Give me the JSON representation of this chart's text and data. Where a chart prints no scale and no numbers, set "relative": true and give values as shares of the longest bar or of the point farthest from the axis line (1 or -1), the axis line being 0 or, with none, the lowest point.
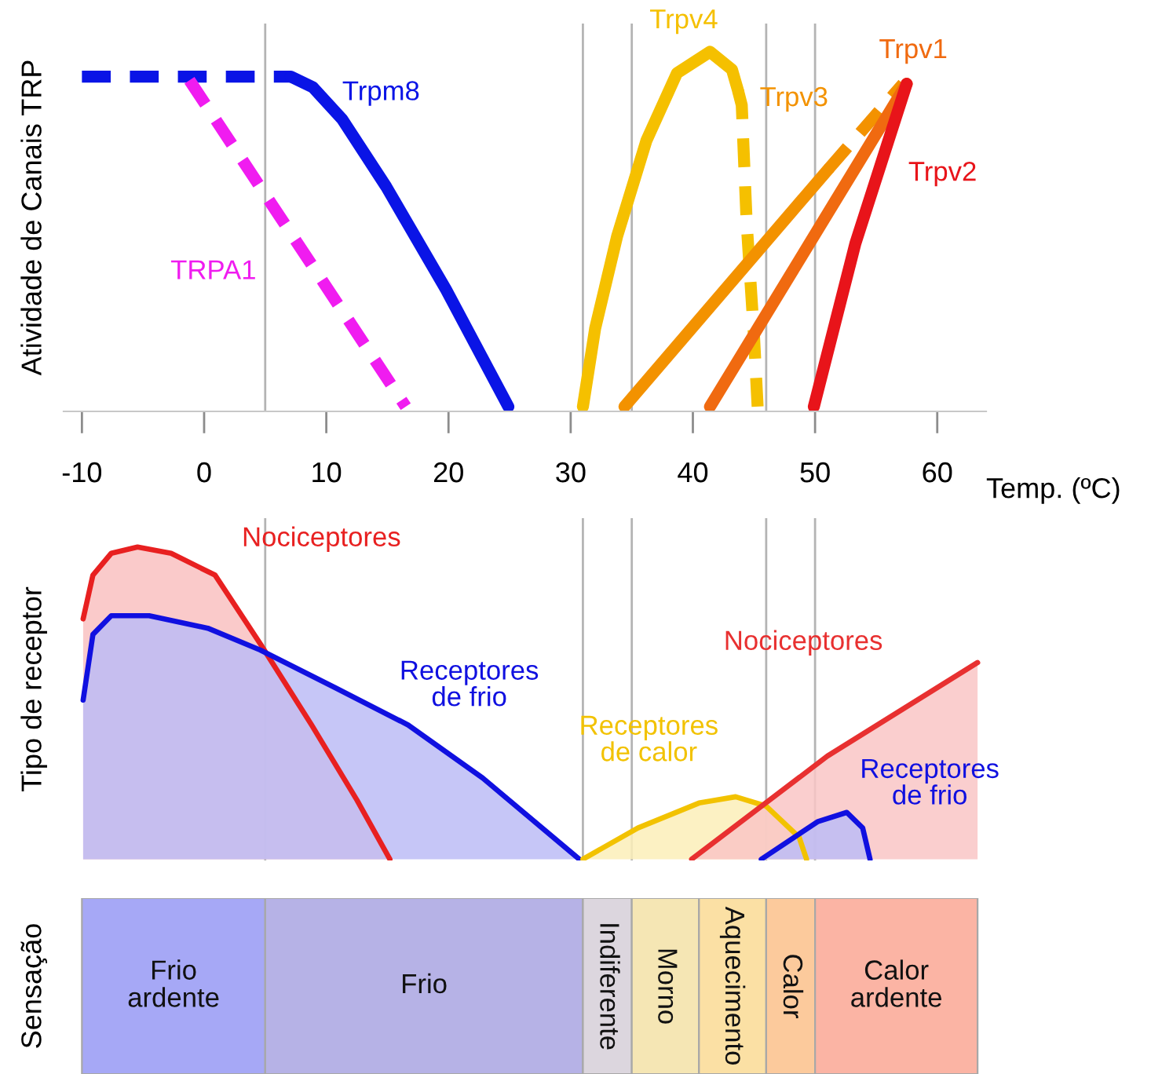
{
  "chart_data": [
    {
      "type": "line",
      "ylabel": "Atividade de Canais TRP",
      "xlabel": "Temp. (ºC)",
      "relative": true,
      "tick_labels": "x",
      "xlim": [
        -11.5,
        64
      ],
      "xticks": [
        -10,
        0,
        10,
        20,
        30,
        40,
        50,
        60
      ],
      "grid": false,
      "ref_lines": [
        {
          "axis": "x",
          "value": 5,
          "color": "#b4b4b4"
        },
        {
          "axis": "x",
          "value": 31,
          "color": "#b4b4b4"
        },
        {
          "axis": "x",
          "value": 35,
          "color": "#b4b4b4"
        },
        {
          "axis": "x",
          "value": 46,
          "color": "#b4b4b4"
        },
        {
          "axis": "x",
          "value": 50,
          "color": "#b4b4b4"
        }
      ],
      "series": [
        {
          "color": "#0a14e6",
          "line_style": "dashed",
          "x": [
            -10,
            7.1
          ],
          "values": [
            0.93,
            0.93
          ]
        },
        {
          "name": "Trpm8",
          "color": "#0a14e6",
          "line_style": "solid",
          "x": [
            7.1,
            8.9,
            11.3,
            14.9,
            19.8,
            24.9
          ],
          "values": [
            0.93,
            0.9,
            0.81,
            0.62,
            0.33,
            0
          ]
        },
        {
          "name": "TRPA1",
          "color": "#f01cf0",
          "line_style": "dashed",
          "x": [
            -1.2,
            16.5
          ],
          "values": [
            0.92,
            0
          ]
        },
        {
          "name": "Trpv4",
          "color": "#f5c000",
          "line_style": "solid",
          "x": [
            31,
            32,
            33.8,
            36.2,
            38.7,
            41.4,
            43.2,
            43.7
          ],
          "values": [
            0,
            0.22,
            0.48,
            0.75,
            0.94,
            1.0,
            0.95,
            0.89
          ]
        },
        {
          "color": "#f5c000",
          "line_style": "dashed",
          "x": [
            43.7,
            44.0,
            44.4,
            45.0,
            45.3
          ],
          "values": [
            0.89,
            0.85,
            0.52,
            0.2,
            0
          ]
        },
        {
          "name": "Trpv3",
          "color": "#f39200",
          "line_style": "solid",
          "x": [
            34.4,
            51.1
          ],
          "values": [
            0,
            0.67
          ]
        },
        {
          "color": "#f39200",
          "line_style": "dashed",
          "x": [
            51.1,
            57.2
          ],
          "values": [
            0.67,
            0.91
          ]
        },
        {
          "name": "Trpv1",
          "color": "#f06a10",
          "line_style": "solid",
          "x": [
            41.4,
            57.5
          ],
          "values": [
            0,
            0.91
          ]
        },
        {
          "name": "Trpv2",
          "color": "#e8141a",
          "line_style": "solid",
          "x": [
            49.9,
            53.3,
            57.5
          ],
          "values": [
            0,
            0.46,
            0.91
          ]
        }
      ]
    },
    {
      "type": "area",
      "ylabel": "Tipo de receptor",
      "relative": true,
      "tick_labels": false,
      "xticks": [
        -10,
        0,
        10,
        20,
        30,
        40,
        50,
        60
      ],
      "grid": false,
      "ref_lines": [
        {
          "axis": "x",
          "value": 5,
          "color": "#b4b4b4"
        },
        {
          "axis": "x",
          "value": 31,
          "color": "#b4b4b4"
        },
        {
          "axis": "x",
          "value": 35,
          "color": "#b4b4b4"
        },
        {
          "axis": "x",
          "value": 46,
          "color": "#b4b4b4"
        },
        {
          "axis": "x",
          "value": 50,
          "color": "#b4b4b4"
        }
      ],
      "series": [
        {
          "name": "Nociceptores",
          "color": "#e82020",
          "x": [
            -9.9,
            -9.1,
            -7.6,
            -5.45,
            -2.7,
            0.9,
            4.6,
            8.8,
            12.5,
            15.2
          ],
          "values": [
            0.77,
            0.91,
            0.98,
            1.0,
            0.98,
            0.91,
            0.69,
            0.43,
            0.19,
            0
          ]
        },
        {
          "name": "Receptores\nde frio",
          "color": "#1010e0",
          "x": [
            -9.9,
            -9.1,
            -7.6,
            -4.5,
            0.3,
            4.6,
            10.7,
            16.7,
            22.8,
            30.7
          ],
          "values": [
            0.51,
            0.72,
            0.78,
            0.78,
            0.74,
            0.67,
            0.55,
            0.43,
            0.26,
            0
          ]
        },
        {
          "name": "Receptores\nde calor",
          "color": "#f2c200",
          "x": [
            31,
            35.5,
            40.5,
            43.5,
            46,
            48.7,
            49.3
          ],
          "values": [
            0,
            0.1,
            0.18,
            0.2,
            0.17,
            0.07,
            0
          ]
        },
        {
          "name": "Nociceptores",
          "color": "#e83030",
          "x": [
            39.9,
            51,
            63.3
          ],
          "values": [
            0,
            0.33,
            0.63
          ]
        },
        {
          "name": "Receptores\nde frio",
          "color": "#1010e0",
          "x": [
            45.6,
            50.2,
            52.6,
            53.9,
            54.5
          ],
          "values": [
            0,
            0.12,
            0.15,
            0.1,
            0
          ]
        }
      ]
    },
    {
      "type": "bar",
      "orientation": "horizontal",
      "ylabel": "Sensação",
      "tick_labels": false,
      "categories": [
        null
      ],
      "xticks": [
        -10,
        0,
        10,
        20,
        30,
        40,
        50,
        60
      ],
      "series": [
        {
          "name": "Frio\nardente",
          "color": "#a6a8f6",
          "base": [
            -10
          ],
          "values": [
            15
          ]
        },
        {
          "name": "Frio",
          "color": "#b6b2e6",
          "base": [
            5
          ],
          "values": [
            26
          ]
        },
        {
          "name": "Indiferente",
          "color": "#dcd6de",
          "base": [
            31
          ],
          "values": [
            4
          ]
        },
        {
          "name": "Morno",
          "color": "#f5e6b4",
          "base": [
            35
          ],
          "values": [
            5.5
          ]
        },
        {
          "name": "Aquecimento",
          "color": "#fbe0a4",
          "base": [
            40.5
          ],
          "values": [
            5.5
          ]
        },
        {
          "name": "Calor",
          "color": "#fcca9c",
          "base": [
            46
          ],
          "values": [
            4
          ]
        },
        {
          "name": "Calor\nardente",
          "color": "#fbb4a4",
          "base": [
            50
          ],
          "values": [
            13.3
          ]
        }
      ]
    }
  ]
}
